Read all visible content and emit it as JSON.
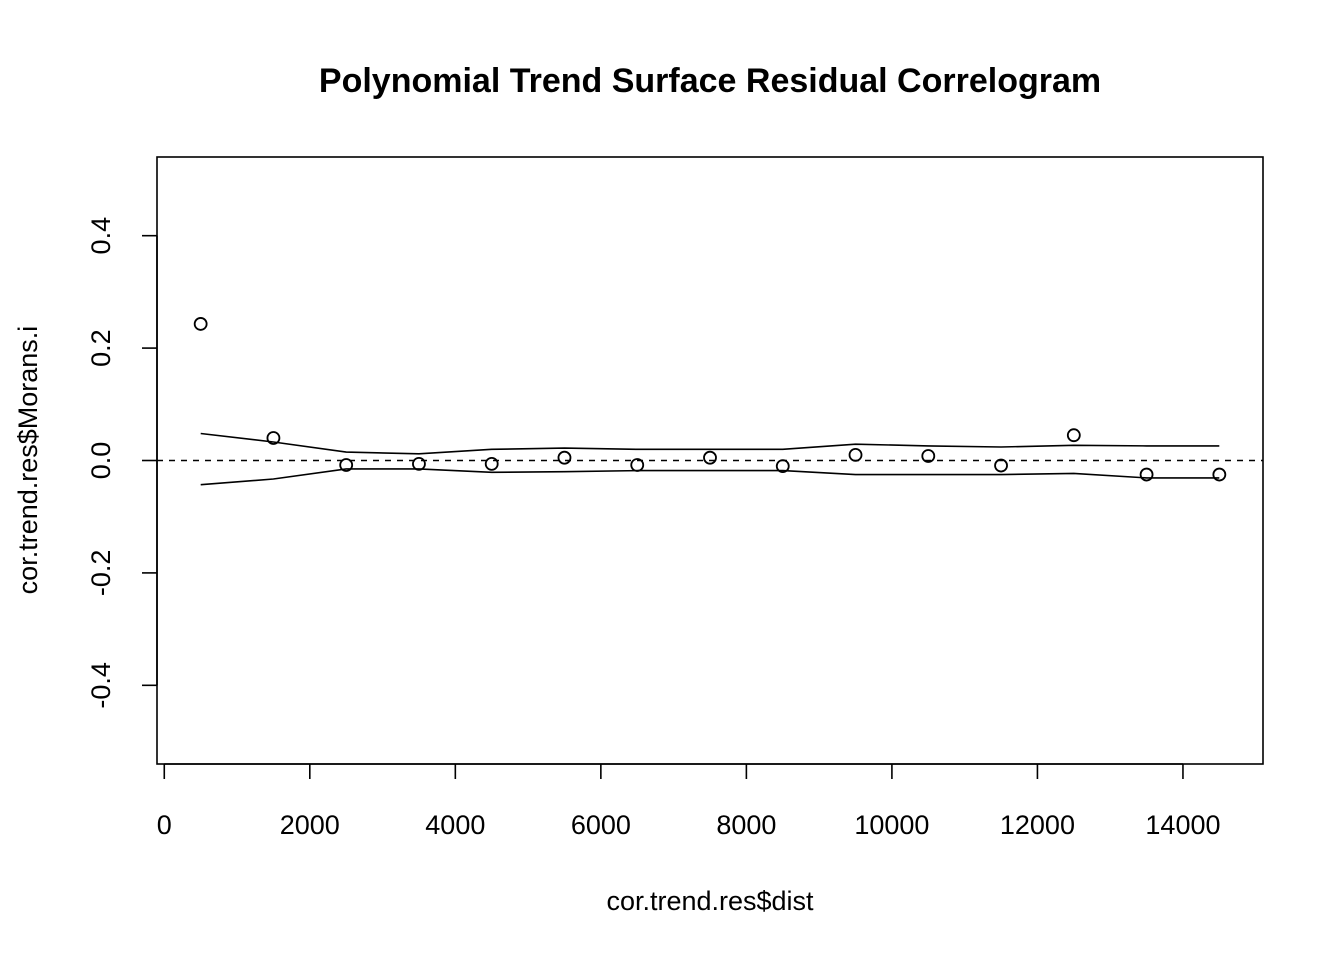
{
  "chart_data": {
    "type": "scatter",
    "title": "Polynomial Trend Surface Residual Correlogram",
    "xlabel": "cor.trend.res$dist",
    "ylabel": "cor.trend.res$Morans.i",
    "xlim": [
      -100,
      15100
    ],
    "ylim": [
      -0.54,
      0.54
    ],
    "x_ticks": [
      0,
      2000,
      4000,
      6000,
      8000,
      10000,
      12000,
      14000
    ],
    "x_tick_labels": [
      "0",
      "2000",
      "4000",
      "6000",
      "8000",
      "10000",
      "12000",
      "14000"
    ],
    "y_ticks": [
      -0.4,
      -0.2,
      0.0,
      0.2,
      0.4
    ],
    "y_tick_labels": [
      "-0.4",
      "-0.2",
      "0.0",
      "0.2",
      "0.4"
    ],
    "reference_line": 0.0,
    "series": [
      {
        "name": "Morans.i",
        "style": "open-circle",
        "x": [
          500,
          1500,
          2500,
          3500,
          4500,
          5500,
          6500,
          7500,
          8500,
          9500,
          10500,
          11500,
          12500,
          13500,
          14500
        ],
        "y": [
          0.243,
          0.04,
          -0.008,
          -0.006,
          -0.006,
          0.005,
          -0.008,
          0.005,
          -0.01,
          0.01,
          0.008,
          -0.009,
          0.045,
          -0.025,
          -0.025
        ]
      },
      {
        "name": "upper envelope",
        "style": "line",
        "x": [
          500,
          1500,
          2500,
          3500,
          4500,
          5500,
          6500,
          7500,
          8500,
          9500,
          10500,
          11500,
          12500,
          13500,
          14500
        ],
        "y": [
          0.048,
          0.033,
          0.015,
          0.012,
          0.02,
          0.022,
          0.02,
          0.02,
          0.02,
          0.029,
          0.026,
          0.024,
          0.027,
          0.026,
          0.026
        ]
      },
      {
        "name": "lower envelope",
        "style": "line",
        "x": [
          500,
          1500,
          2500,
          3500,
          4500,
          5500,
          6500,
          7500,
          8500,
          9500,
          10500,
          11500,
          12500,
          13500,
          14500
        ],
        "y": [
          -0.043,
          -0.033,
          -0.015,
          -0.015,
          -0.021,
          -0.02,
          -0.018,
          -0.018,
          -0.018,
          -0.025,
          -0.025,
          -0.025,
          -0.023,
          -0.031,
          -0.031
        ]
      }
    ]
  }
}
